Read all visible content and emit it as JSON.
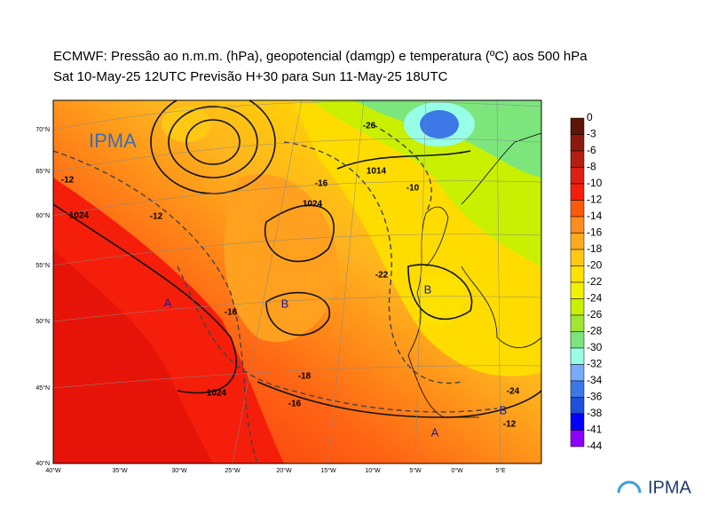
{
  "header": {
    "title": "ECMWF:  Pressão ao n.m.m. (hPa), geopotencial (damgp) e temperatura (ºC) aos 500 hPa",
    "subtitle": "Sat 10-May-25 12UTC Previsão H+30 para Sun 11-May-25 18UTC"
  },
  "colorbar": {
    "labels": [
      "0",
      "-3",
      "-6",
      "-8",
      "-10",
      "-12",
      "-14",
      "-16",
      "-18",
      "-20",
      "-22",
      "-24",
      "-26",
      "-28",
      "-30",
      "-32",
      "-34",
      "-36",
      "-38",
      "-41",
      "-44"
    ],
    "colors": [
      "#5c1408",
      "#8c1a0c",
      "#b41e10",
      "#dc2014",
      "#f51e0a",
      "#ff5a0a",
      "#ff8c1e",
      "#ffaa1e",
      "#ffc814",
      "#ffe100",
      "#f0f000",
      "#c8f000",
      "#a0e632",
      "#7ce67c",
      "#96ffe6",
      "#78aaff",
      "#3c78e6",
      "#1e50dc",
      "#0000ff",
      "#8c00ff",
      "#ff00ff"
    ]
  },
  "axes": {
    "lat_labels": [
      "70°N",
      "65°N",
      "60°N",
      "55°N",
      "50°N",
      "45°N",
      "40°N"
    ],
    "lon_labels": [
      "40°W",
      "35°W",
      "30°W",
      "25°W",
      "20°W",
      "15°W",
      "10°W",
      "5°W",
      "0°W",
      "5°E"
    ]
  },
  "map_labels": [
    "A",
    "B",
    "B",
    "B",
    "A",
    "1024",
    "1024",
    "1024",
    "1014",
    "-16",
    "-16",
    "-12",
    "-12",
    "-10",
    "-22",
    "-24",
    "-26",
    "-18",
    "-12",
    "-16"
  ],
  "logo": "IPMA"
}
